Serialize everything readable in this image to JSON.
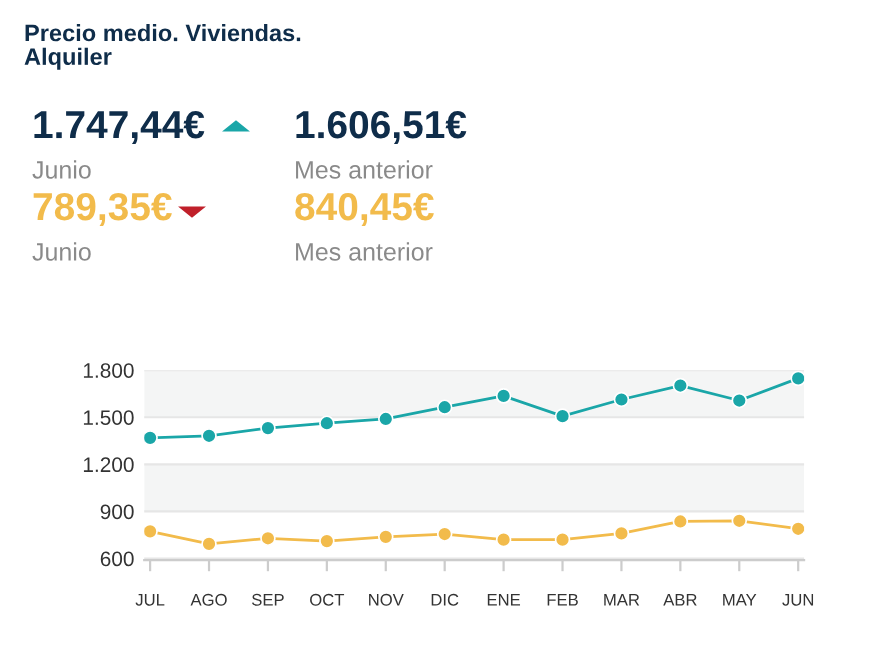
{
  "chart_data": {
    "type": "line",
    "title": "Precio medio. Viviendas.\nAlquiler",
    "annotations": [
      "1.747,44€",
      "Junio",
      "1.606,51€",
      "Mes anterior",
      "789,35€",
      "Junio",
      "840,45€",
      "Mes anterior"
    ],
    "categories": [
      "JUL",
      "AGO",
      "SEP",
      "OCT",
      "NOV",
      "DIC",
      "ENE",
      "FEB",
      "MAR",
      "ABR",
      "MAY",
      "JUN"
    ],
    "series": [
      {
        "color": "#1aa6a8",
        "values": [
          1369,
          1382,
          1431,
          1462,
          1489,
          1564,
          1636,
          1507,
          1613,
          1702,
          1606.51,
          1747.44
        ]
      },
      {
        "color": "#f2bb4b",
        "values": [
          773,
          693,
          729,
          711,
          738,
          756,
          720,
          720,
          760,
          836,
          840.45,
          789.35
        ]
      }
    ],
    "ylim": [
      590,
      1800
    ],
    "yticks": [
      {
        "value": 600,
        "label": "600"
      },
      {
        "value": 900,
        "label": "900"
      },
      {
        "value": 1200,
        "label": "1.200"
      },
      {
        "value": 1500,
        "label": "1.500"
      },
      {
        "value": 1800,
        "label": "1.800"
      }
    ],
    "grid": "y",
    "marker": "circle",
    "line_style": "solid"
  }
}
